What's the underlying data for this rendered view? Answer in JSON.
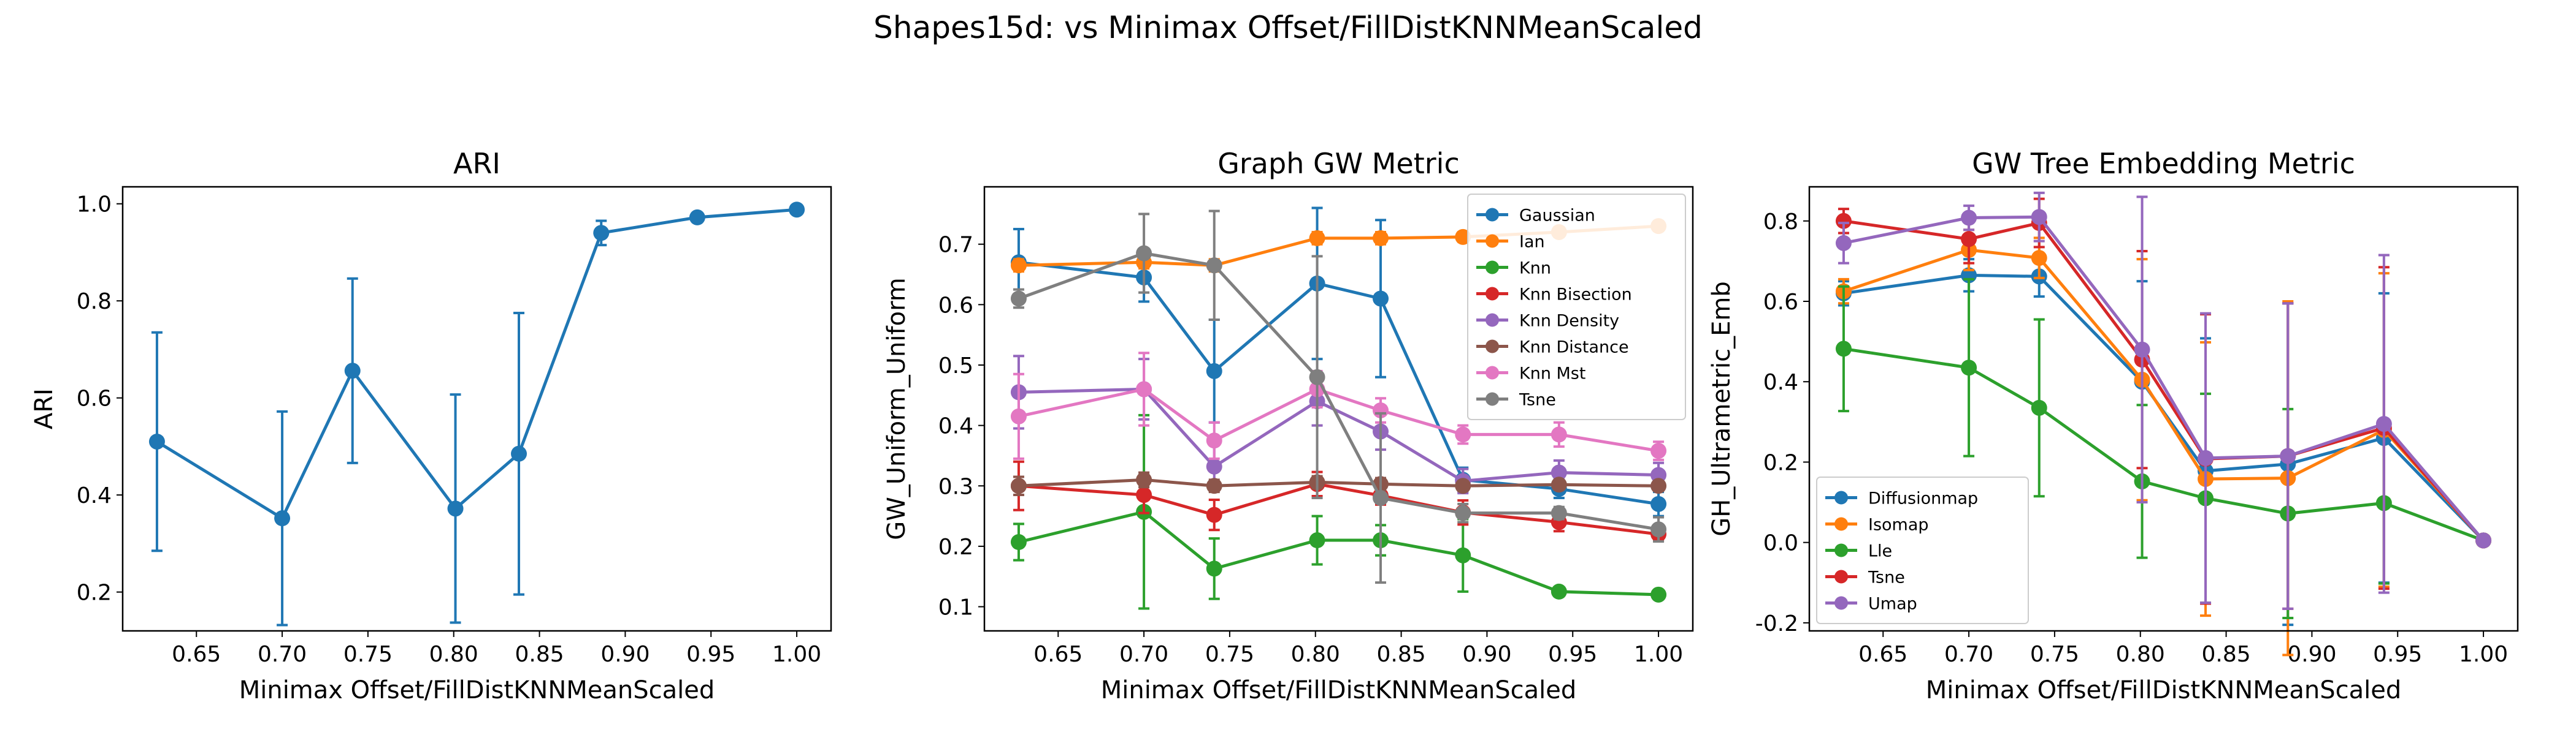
{
  "figure": {
    "suptitle": "Shapes15d: vs Minimax Offset/FillDistKNNMeanScaled"
  },
  "chart_data": [
    {
      "type": "line",
      "title": "ARI",
      "xlabel": "Minimax Offset/FillDistKNNMeanScaled",
      "ylabel": "ARI",
      "xlim": [
        0.607,
        1.02
      ],
      "ylim": [
        0.12,
        1.035
      ],
      "xticks": [
        "0.65",
        "0.70",
        "0.75",
        "0.80",
        "0.85",
        "0.90",
        "0.95",
        "1.00"
      ],
      "yticks": [
        "0.2",
        "0.4",
        "0.6",
        "0.8",
        "1.0"
      ],
      "legend": null,
      "x": [
        0.627,
        0.7,
        0.741,
        0.801,
        0.838,
        0.886,
        0.942,
        1.0
      ],
      "series": [
        {
          "color": "#1f77b4",
          "values": [
            0.51,
            0.352,
            0.656,
            0.372,
            0.485,
            0.94,
            0.972,
            0.988
          ],
          "errors": [
            0.225,
            0.22,
            0.19,
            0.235,
            0.29,
            0.025,
            0.008,
            0.006
          ]
        }
      ]
    },
    {
      "type": "line",
      "title": "Graph GW Metric",
      "xlabel": "Minimax Offset/FillDistKNNMeanScaled",
      "ylabel": "GW_Uniform_Uniform",
      "xlim": [
        0.607,
        1.02
      ],
      "ylim": [
        0.06,
        0.795
      ],
      "xticks": [
        "0.65",
        "0.70",
        "0.75",
        "0.80",
        "0.85",
        "0.90",
        "0.95",
        "1.00"
      ],
      "yticks": [
        "0.1",
        "0.2",
        "0.3",
        "0.4",
        "0.5",
        "0.6",
        "0.7"
      ],
      "legend": "top-right",
      "x": [
        0.627,
        0.7,
        0.741,
        0.801,
        0.838,
        0.886,
        0.942,
        1.0
      ],
      "series": [
        {
          "name": "Gaussian",
          "color": "#1f77b4",
          "values": [
            0.67,
            0.645,
            0.49,
            0.635,
            0.61,
            0.31,
            0.295,
            0.27
          ],
          "errors": [
            0.055,
            0.04,
            0.085,
            0.125,
            0.13,
            0.02,
            0.015,
            0.02
          ]
        },
        {
          "name": "Ian",
          "color": "#ff7f0e",
          "values": [
            0.665,
            0.67,
            0.665,
            0.71,
            0.71,
            0.712,
            0.72,
            0.73
          ],
          "errors": [
            0.01,
            0.01,
            0.01,
            0.01,
            0.01,
            0.008,
            0.008,
            0.008
          ]
        },
        {
          "name": "Knn",
          "color": "#2ca02c",
          "values": [
            0.207,
            0.257,
            0.163,
            0.21,
            0.21,
            0.185,
            0.125,
            0.12
          ],
          "errors": [
            0.03,
            0.16,
            0.05,
            0.04,
            0.025,
            0.06,
            0.006,
            0.005
          ]
        },
        {
          "name": "Knn Bisection",
          "color": "#d62728",
          "values": [
            0.3,
            0.285,
            0.252,
            0.303,
            0.284,
            0.256,
            0.24,
            0.22
          ],
          "errors": [
            0.04,
            0.03,
            0.025,
            0.02,
            0.015,
            0.02,
            0.015,
            0.01
          ]
        },
        {
          "name": "Knn Density",
          "color": "#9467bd",
          "values": [
            0.455,
            0.46,
            0.332,
            0.44,
            0.39,
            0.308,
            0.322,
            0.318
          ],
          "errors": [
            0.06,
            0.05,
            0.04,
            0.04,
            0.03,
            0.02,
            0.02,
            0.02
          ]
        },
        {
          "name": "Knn Distance",
          "color": "#8c564b",
          "values": [
            0.3,
            0.31,
            0.3,
            0.306,
            0.303,
            0.3,
            0.302,
            0.3
          ],
          "errors": [
            0.015,
            0.012,
            0.01,
            0.01,
            0.01,
            0.008,
            0.008,
            0.008
          ]
        },
        {
          "name": "Knn Mst",
          "color": "#e377c2",
          "values": [
            0.415,
            0.46,
            0.375,
            0.46,
            0.425,
            0.385,
            0.385,
            0.358
          ],
          "errors": [
            0.07,
            0.06,
            0.03,
            0.03,
            0.02,
            0.015,
            0.02,
            0.015
          ]
        },
        {
          "name": "Tsne",
          "color": "#7f7f7f",
          "values": [
            0.61,
            0.685,
            0.665,
            0.48,
            0.28,
            0.255,
            0.255,
            0.228
          ],
          "errors": [
            0.015,
            0.065,
            0.09,
            0.2,
            0.14,
            0.015,
            0.01,
            0.02
          ]
        }
      ]
    },
    {
      "type": "line",
      "title": "GW Tree Embedding Metric",
      "xlabel": "Minimax Offset/FillDistKNNMeanScaled",
      "ylabel": "GH_Ultrametric_Emb",
      "xlim": [
        0.607,
        1.02
      ],
      "ylim": [
        -0.22,
        0.885
      ],
      "xticks": [
        "0.65",
        "0.70",
        "0.75",
        "0.80",
        "0.85",
        "0.90",
        "0.95",
        "1.00"
      ],
      "yticks": [
        "-0.2",
        "0.0",
        "0.2",
        "0.4",
        "0.6",
        "0.8"
      ],
      "legend": "bottom-left",
      "x": [
        0.627,
        0.7,
        0.741,
        0.801,
        0.838,
        0.886,
        0.942,
        1.0
      ],
      "series": [
        {
          "name": "Diffusionmap",
          "color": "#1f77b4",
          "values": [
            0.62,
            0.665,
            0.662,
            0.4,
            0.178,
            0.195,
            0.26,
            0.005
          ],
          "errors": [
            0.03,
            0.04,
            0.05,
            0.25,
            0.33,
            0.4,
            0.36,
            0.005
          ]
        },
        {
          "name": "Isomap",
          "color": "#ff7f0e",
          "values": [
            0.625,
            0.728,
            0.708,
            0.405,
            0.158,
            0.16,
            0.28,
            0.005
          ],
          "errors": [
            0.03,
            0.05,
            0.05,
            0.3,
            0.34,
            0.44,
            0.39,
            0.005
          ]
        },
        {
          "name": "Lle",
          "color": "#2ca02c",
          "values": [
            0.482,
            0.435,
            0.335,
            0.152,
            0.11,
            0.072,
            0.098,
            0.005
          ],
          "errors": [
            0.155,
            0.22,
            0.22,
            0.19,
            0.26,
            0.26,
            0.2,
            0.005
          ]
        },
        {
          "name": "Tsne",
          "color": "#d62728",
          "values": [
            0.8,
            0.755,
            0.795,
            0.455,
            0.208,
            0.215,
            0.285,
            0.005
          ],
          "errors": [
            0.03,
            0.06,
            0.06,
            0.27,
            0.36,
            0.38,
            0.4,
            0.005
          ]
        },
        {
          "name": "Umap",
          "color": "#9467bd",
          "values": [
            0.745,
            0.808,
            0.81,
            0.48,
            0.21,
            0.215,
            0.295,
            0.005
          ],
          "errors": [
            0.05,
            0.03,
            0.06,
            0.38,
            0.36,
            0.38,
            0.42,
            0.005
          ]
        }
      ]
    }
  ]
}
